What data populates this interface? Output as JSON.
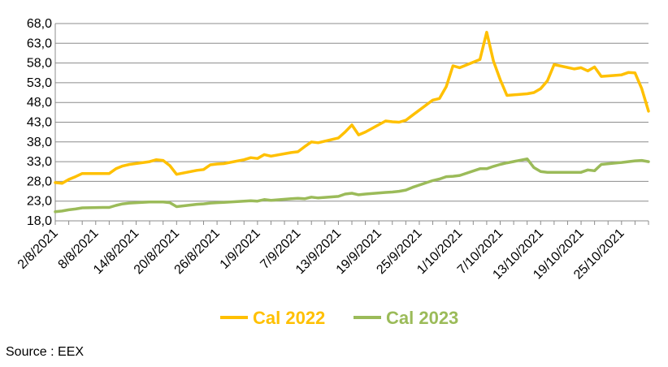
{
  "chart_data": {
    "type": "line",
    "title": "",
    "xlabel": "",
    "ylabel": "",
    "ylim": [
      18.0,
      68.0
    ],
    "yticks": [
      "18,0",
      "23,0",
      "28,0",
      "33,0",
      "38,0",
      "43,0",
      "48,0",
      "53,0",
      "58,0",
      "63,0",
      "68,0"
    ],
    "xlim": [
      "2021-08-02",
      "2021-10-29"
    ],
    "x_tick_labels": [
      "2/8/2021",
      "8/8/2021",
      "14/8/2021",
      "20/8/2021",
      "26/8/2021",
      "1/9/2021",
      "7/9/2021",
      "13/9/2021",
      "19/9/2021",
      "25/9/2021",
      "1/10/2021",
      "7/10/2021",
      "13/10/2021",
      "19/10/2021",
      "25/10/2021"
    ],
    "x_tick_dates": [
      "2021-08-02",
      "2021-08-08",
      "2021-08-14",
      "2021-08-20",
      "2021-08-26",
      "2021-09-01",
      "2021-09-07",
      "2021-09-13",
      "2021-09-19",
      "2021-09-25",
      "2021-10-01",
      "2021-10-07",
      "2021-10-13",
      "2021-10-19",
      "2021-10-25"
    ],
    "grid": "horizontal",
    "legend_position": "bottom",
    "series": [
      {
        "name": "Cal 2022",
        "color": "#FFC000",
        "points": [
          [
            "2021-08-02",
            27.7
          ],
          [
            "2021-08-03",
            27.5
          ],
          [
            "2021-08-04",
            28.5
          ],
          [
            "2021-08-05",
            29.2
          ],
          [
            "2021-08-06",
            30.0
          ],
          [
            "2021-08-09",
            30.0
          ],
          [
            "2021-08-10",
            30.0
          ],
          [
            "2021-08-11",
            31.2
          ],
          [
            "2021-08-12",
            31.9
          ],
          [
            "2021-08-13",
            32.3
          ],
          [
            "2021-08-16",
            33.0
          ],
          [
            "2021-08-17",
            33.5
          ],
          [
            "2021-08-18",
            33.3
          ],
          [
            "2021-08-19",
            32.0
          ],
          [
            "2021-08-20",
            29.8
          ],
          [
            "2021-08-23",
            30.8
          ],
          [
            "2021-08-24",
            31.0
          ],
          [
            "2021-08-25",
            32.2
          ],
          [
            "2021-08-26",
            32.4
          ],
          [
            "2021-08-27",
            32.5
          ],
          [
            "2021-08-30",
            33.5
          ],
          [
            "2021-08-31",
            34.0
          ],
          [
            "2021-09-01",
            33.8
          ],
          [
            "2021-09-02",
            34.8
          ],
          [
            "2021-09-03",
            34.4
          ],
          [
            "2021-09-06",
            35.3
          ],
          [
            "2021-09-07",
            35.5
          ],
          [
            "2021-09-08",
            36.8
          ],
          [
            "2021-09-09",
            38.0
          ],
          [
            "2021-09-10",
            37.8
          ],
          [
            "2021-09-13",
            39.0
          ],
          [
            "2021-09-14",
            40.5
          ],
          [
            "2021-09-15",
            42.3
          ],
          [
            "2021-09-16",
            39.8
          ],
          [
            "2021-09-17",
            40.5
          ],
          [
            "2021-09-20",
            43.3
          ],
          [
            "2021-09-21",
            43.1
          ],
          [
            "2021-09-22",
            43.0
          ],
          [
            "2021-09-23",
            43.5
          ],
          [
            "2021-09-24",
            44.8
          ],
          [
            "2021-09-27",
            48.6
          ],
          [
            "2021-09-28",
            49.0
          ],
          [
            "2021-09-29",
            52.0
          ],
          [
            "2021-09-30",
            57.3
          ],
          [
            "2021-10-01",
            56.8
          ],
          [
            "2021-10-04",
            58.9
          ],
          [
            "2021-10-05",
            65.8
          ],
          [
            "2021-10-06",
            58.5
          ],
          [
            "2021-10-07",
            53.8
          ],
          [
            "2021-10-08",
            49.8
          ],
          [
            "2021-10-11",
            50.2
          ],
          [
            "2021-10-12",
            50.5
          ],
          [
            "2021-10-13",
            51.5
          ],
          [
            "2021-10-14",
            53.5
          ],
          [
            "2021-10-15",
            57.6
          ],
          [
            "2021-10-18",
            56.5
          ],
          [
            "2021-10-19",
            56.8
          ],
          [
            "2021-10-20",
            56.0
          ],
          [
            "2021-10-21",
            57.0
          ],
          [
            "2021-10-22",
            54.6
          ],
          [
            "2021-10-25",
            55.0
          ],
          [
            "2021-10-26",
            55.6
          ],
          [
            "2021-10-27",
            55.5
          ],
          [
            "2021-10-28",
            51.5
          ],
          [
            "2021-10-29",
            45.8
          ]
        ]
      },
      {
        "name": "Cal 2023",
        "color": "#9BBB59",
        "points": [
          [
            "2021-08-02",
            20.3
          ],
          [
            "2021-08-03",
            20.5
          ],
          [
            "2021-08-04",
            20.8
          ],
          [
            "2021-08-05",
            21.0
          ],
          [
            "2021-08-06",
            21.3
          ],
          [
            "2021-08-09",
            21.4
          ],
          [
            "2021-08-10",
            21.4
          ],
          [
            "2021-08-11",
            21.9
          ],
          [
            "2021-08-12",
            22.3
          ],
          [
            "2021-08-13",
            22.5
          ],
          [
            "2021-08-16",
            22.8
          ],
          [
            "2021-08-17",
            22.8
          ],
          [
            "2021-08-18",
            22.8
          ],
          [
            "2021-08-19",
            22.6
          ],
          [
            "2021-08-20",
            21.6
          ],
          [
            "2021-08-23",
            22.2
          ],
          [
            "2021-08-24",
            22.3
          ],
          [
            "2021-08-25",
            22.5
          ],
          [
            "2021-08-26",
            22.6
          ],
          [
            "2021-08-27",
            22.7
          ],
          [
            "2021-08-30",
            23.0
          ],
          [
            "2021-08-31",
            23.1
          ],
          [
            "2021-09-01",
            23.0
          ],
          [
            "2021-09-02",
            23.4
          ],
          [
            "2021-09-03",
            23.2
          ],
          [
            "2021-09-06",
            23.6
          ],
          [
            "2021-09-07",
            23.7
          ],
          [
            "2021-09-08",
            23.6
          ],
          [
            "2021-09-09",
            24.0
          ],
          [
            "2021-09-10",
            23.8
          ],
          [
            "2021-09-13",
            24.2
          ],
          [
            "2021-09-14",
            24.8
          ],
          [
            "2021-09-15",
            25.0
          ],
          [
            "2021-09-16",
            24.6
          ],
          [
            "2021-09-17",
            24.8
          ],
          [
            "2021-09-20",
            25.2
          ],
          [
            "2021-09-21",
            25.3
          ],
          [
            "2021-09-22",
            25.5
          ],
          [
            "2021-09-23",
            25.8
          ],
          [
            "2021-09-24",
            26.5
          ],
          [
            "2021-09-27",
            28.2
          ],
          [
            "2021-09-28",
            28.6
          ],
          [
            "2021-09-29",
            29.2
          ],
          [
            "2021-09-30",
            29.3
          ],
          [
            "2021-10-01",
            29.5
          ],
          [
            "2021-10-04",
            31.2
          ],
          [
            "2021-10-05",
            31.2
          ],
          [
            "2021-10-06",
            31.8
          ],
          [
            "2021-10-07",
            32.3
          ],
          [
            "2021-10-08",
            32.7
          ],
          [
            "2021-10-11",
            33.7
          ],
          [
            "2021-10-12",
            31.5
          ],
          [
            "2021-10-13",
            30.5
          ],
          [
            "2021-10-14",
            30.3
          ],
          [
            "2021-10-15",
            30.3
          ],
          [
            "2021-10-18",
            30.3
          ],
          [
            "2021-10-19",
            30.3
          ],
          [
            "2021-10-20",
            30.9
          ],
          [
            "2021-10-21",
            30.7
          ],
          [
            "2021-10-22",
            32.3
          ],
          [
            "2021-10-25",
            32.8
          ],
          [
            "2021-10-26",
            33.0
          ],
          [
            "2021-10-27",
            33.2
          ],
          [
            "2021-10-28",
            33.3
          ],
          [
            "2021-10-29",
            33.0
          ]
        ]
      }
    ]
  },
  "source_note": "Source : EEX"
}
